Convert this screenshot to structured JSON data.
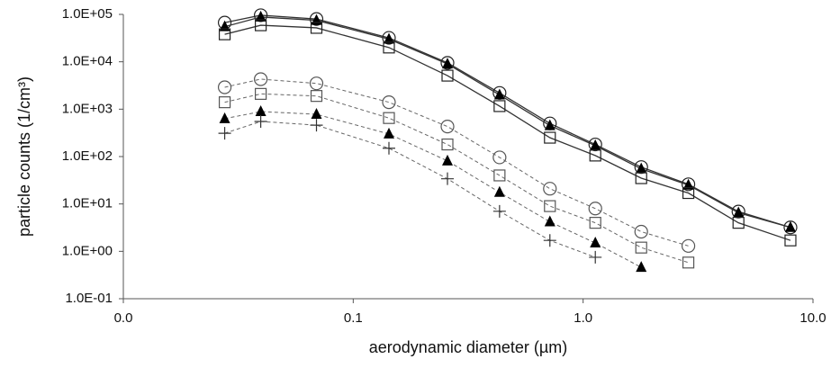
{
  "chart_data": {
    "type": "line",
    "x_label": "aerodynamic diameter (µm)",
    "y_label": "particle counts (1/cm³)",
    "x": [
      0.0276,
      0.0396,
      0.0692,
      0.143,
      0.257,
      0.433,
      0.717,
      1.13,
      1.79,
      2.87,
      4.74,
      7.98
    ],
    "xscale": "log",
    "yscale": "log",
    "grid": false,
    "xlim": [
      0.01,
      10
    ],
    "xticks": [
      {
        "value": 0.01,
        "label": "0.0"
      },
      {
        "value": 0.1,
        "label": "0.1"
      },
      {
        "value": 1,
        "label": "1.0"
      },
      {
        "value": 10,
        "label": "10.0"
      }
    ],
    "ylim": [
      0.1,
      100000
    ],
    "yticks": [
      {
        "value": 0.1,
        "label": "1.0E-01"
      },
      {
        "value": 1,
        "label": "1.0E+00"
      },
      {
        "value": 10,
        "label": "1.0E+01"
      },
      {
        "value": 100,
        "label": "1.0E+02"
      },
      {
        "value": 1000,
        "label": "1.0E+03"
      },
      {
        "value": 10000,
        "label": "1.0E+04"
      },
      {
        "value": 100000,
        "label": "1.0E+05"
      }
    ],
    "series": [
      {
        "color": "#222222",
        "marker": "circle",
        "dashed": false,
        "values": [
          67000,
          96000,
          80000,
          32000,
          9500,
          2200,
          500,
          180,
          60,
          26,
          6.9,
          3.2
        ]
      },
      {
        "color": "#000000",
        "marker": "triangle",
        "dashed": false,
        "values": [
          55000,
          88000,
          75000,
          30000,
          9000,
          2000,
          450,
          170,
          55,
          25,
          6.5,
          3.2
        ]
      },
      {
        "color": "#222222",
        "marker": "square",
        "dashed": false,
        "values": [
          38000,
          59000,
          52000,
          20000,
          5100,
          1160,
          250,
          105,
          35,
          17,
          4.0,
          1.7
        ]
      },
      {
        "color": "#555555",
        "marker": "circle",
        "dashed": true,
        "values": [
          2900,
          4300,
          3500,
          1400,
          430,
          96,
          21,
          8.0,
          2.6,
          1.3,
          null,
          null
        ]
      },
      {
        "color": "#555555",
        "marker": "square",
        "dashed": true,
        "values": [
          1400,
          2100,
          1900,
          650,
          180,
          40,
          9.0,
          4.0,
          1.2,
          0.58,
          null,
          null
        ]
      },
      {
        "color": "#000000",
        "marker": "triangle",
        "dashed": true,
        "values": [
          630,
          890,
          780,
          300,
          81,
          17.6,
          4.2,
          1.5,
          0.46,
          null,
          null,
          null
        ]
      },
      {
        "color": "#333333",
        "marker": "plus",
        "dashed": true,
        "values": [
          310,
          550,
          460,
          150,
          34,
          7.0,
          1.7,
          0.75,
          null,
          null,
          null,
          null
        ]
      }
    ]
  }
}
